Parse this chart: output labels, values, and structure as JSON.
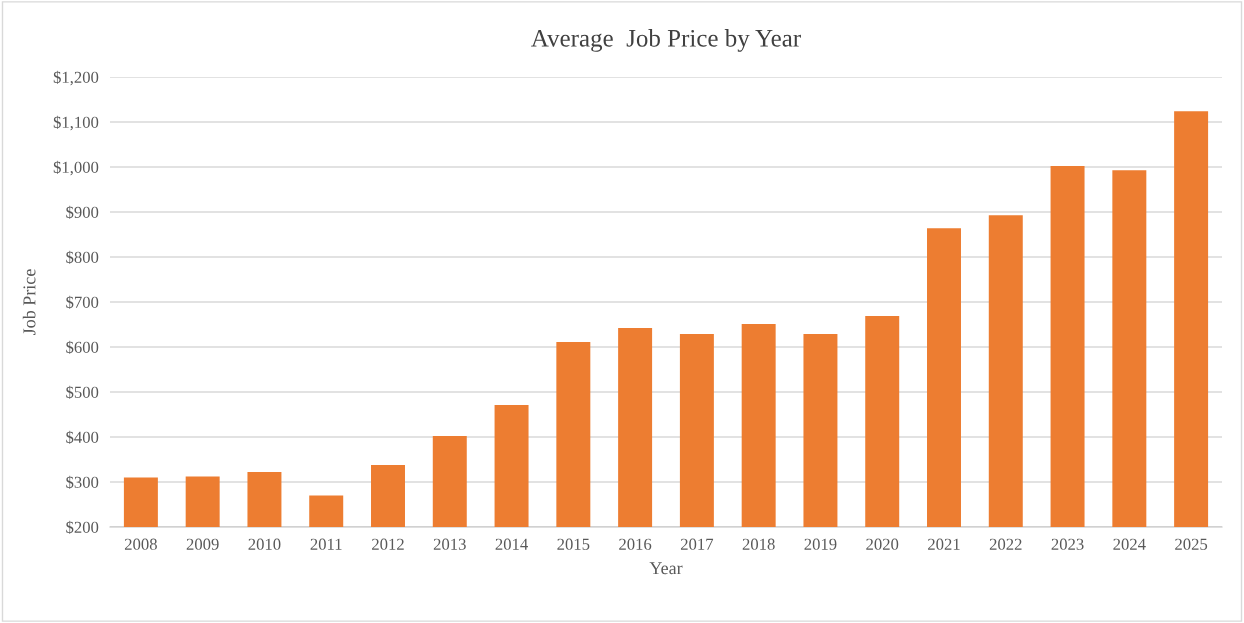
{
  "chart_data": {
    "type": "bar",
    "title": "Average  Job Price by Year",
    "xlabel": "Year",
    "ylabel": "Job Price",
    "categories": [
      "2008",
      "2009",
      "2010",
      "2011",
      "2012",
      "2013",
      "2014",
      "2015",
      "2016",
      "2017",
      "2018",
      "2019",
      "2020",
      "2021",
      "2022",
      "2023",
      "2024",
      "2025"
    ],
    "values": [
      310,
      312,
      322,
      270,
      338,
      402,
      471,
      611,
      642,
      629,
      651,
      629,
      669,
      864,
      893,
      1002,
      993,
      1124
    ],
    "color": "#ed7d31",
    "ylim": [
      200,
      1200
    ],
    "yticks": [
      {
        "value": 200,
        "label": "$200"
      },
      {
        "value": 300,
        "label": "$300"
      },
      {
        "value": 400,
        "label": "$400"
      },
      {
        "value": 500,
        "label": "$500"
      },
      {
        "value": 600,
        "label": "$600"
      },
      {
        "value": 700,
        "label": "$700"
      },
      {
        "value": 800,
        "label": "$800"
      },
      {
        "value": 900,
        "label": "$900"
      },
      {
        "value": 1000,
        "label": "$1,000"
      },
      {
        "value": 1100,
        "label": "$1,100"
      },
      {
        "value": 1200,
        "label": "$1,200"
      }
    ],
    "grid": "y"
  }
}
